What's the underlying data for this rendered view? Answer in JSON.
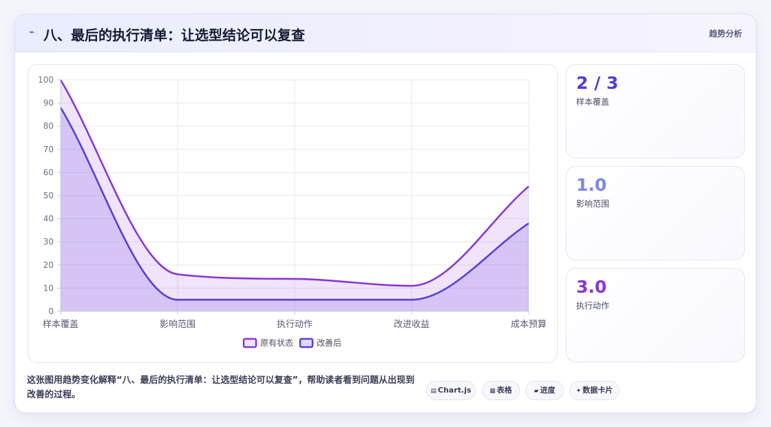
{
  "header": {
    "icon": "bolt-icon",
    "title": "八、最后的执行清单：让选型结论可以复查",
    "tag": "趋势分析"
  },
  "chart_data": {
    "type": "area",
    "categories": [
      "样本覆盖",
      "影响范围",
      "执行动作",
      "改进收益",
      "成本预算"
    ],
    "series": [
      {
        "name": "原有状态",
        "values": [
          100,
          16,
          14,
          11,
          54
        ],
        "color": "#8a35d6"
      },
      {
        "name": "改善后",
        "values": [
          88,
          5,
          5,
          5,
          38
        ],
        "color": "#5840d4"
      }
    ],
    "ylim": [
      0,
      100
    ],
    "yticks": [
      0,
      10,
      20,
      30,
      40,
      50,
      60,
      70,
      80,
      90,
      100
    ],
    "grid": true,
    "legend": "bottom",
    "smooth": true
  },
  "stats": [
    {
      "value": "2 / 3",
      "label": "样本覆盖",
      "color": "#4f3fd0"
    },
    {
      "value": "1.0",
      "label": "影响范围",
      "color": "#7d88e8"
    },
    {
      "value": "3.0",
      "label": "执行动作",
      "color": "#8a35d6"
    }
  ],
  "footer": {
    "description": "这张图用趋势变化解释“八、最后的执行清单：让选型结论可以复查”，帮助读者看到问题从出现到改善的过程。",
    "chips": [
      {
        "icon": "chart-icon",
        "glyph": "▤",
        "label": "Chart.js"
      },
      {
        "icon": "table-icon",
        "glyph": "▦",
        "label": "表格"
      },
      {
        "icon": "progress-icon",
        "glyph": "▰",
        "label": "进度"
      },
      {
        "icon": "sparkle-icon",
        "glyph": "✦",
        "label": "数据卡片"
      }
    ]
  }
}
